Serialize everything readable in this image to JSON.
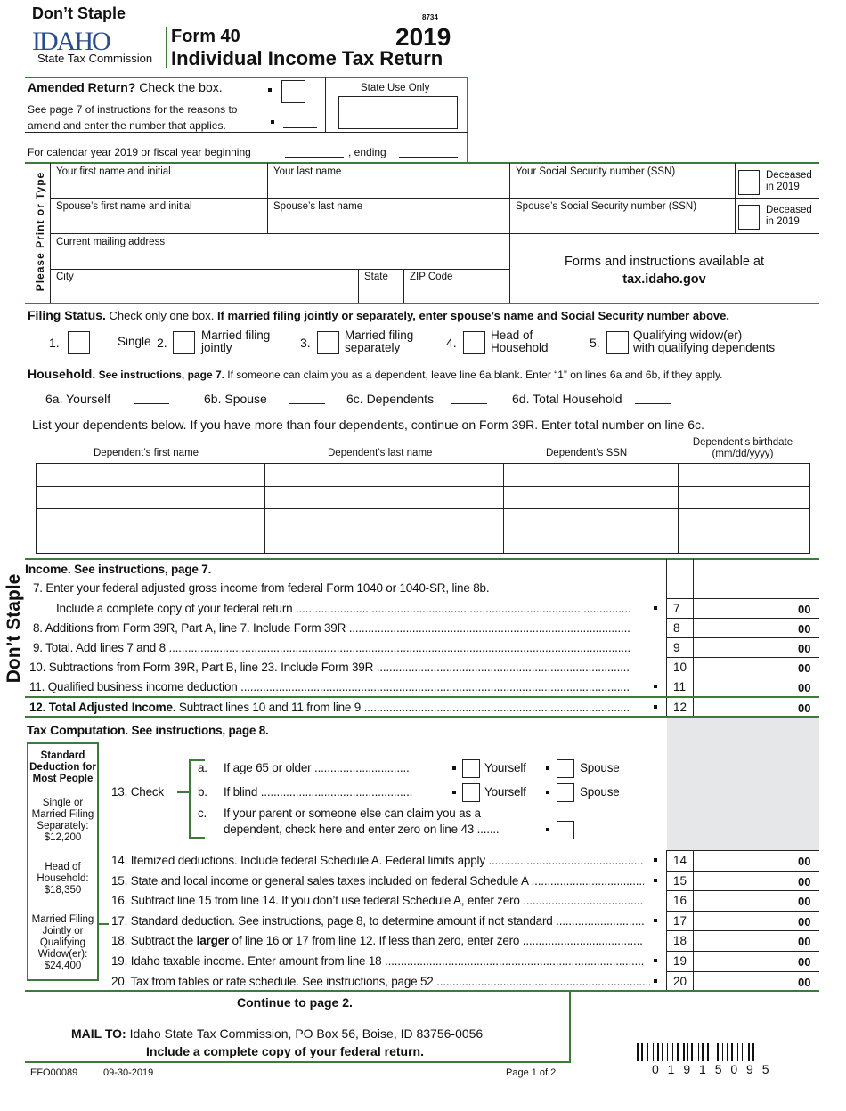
{
  "header": {
    "dont_staple": "Don’t Staple",
    "logo_text": "IDAHO",
    "agency": "State Tax Commission",
    "form_number": "Form 40",
    "form_title": "Individual Income Tax Return",
    "code": "8734",
    "year": "2019"
  },
  "amended": {
    "label_bold": "Amended Return?",
    "label": "Check the box.",
    "instr_line1": "See page 7 of instructions for the reasons to",
    "instr_line2": "amend and enter the number that applies.",
    "state_use": "State Use Only",
    "fiscal_text": "For calendar year 2019 or fiscal year beginning",
    "ending": ", ending"
  },
  "personal": {
    "side_label": "Please Print or Type",
    "first_name": "Your first name and initial",
    "last_name": "Your last name",
    "ssn": "Your Social Security number (SSN)",
    "deceased1": "Deceased",
    "deceased2": "in 2019",
    "spouse_first": "Spouse’s first name and initial",
    "spouse_last": "Spouse’s last name",
    "spouse_ssn": "Spouse’s Social Security number (SSN)",
    "address": "Current mailing address",
    "city": "City",
    "state": "State",
    "zip": "ZIP Code",
    "forms_line1": "Forms and instructions available at",
    "forms_line2": "tax.idaho.gov"
  },
  "filing": {
    "title": "Filing Status.",
    "text": "Check only one box.",
    "text_bold": "If married filing jointly or separately, enter spouse’s name and Social Security number above.",
    "options": [
      {
        "n": "1.",
        "l1": "Single",
        "l2": ""
      },
      {
        "n": "2.",
        "l1": "Married filing",
        "l2": "jointly"
      },
      {
        "n": "3.",
        "l1": "Married filing",
        "l2": "separately"
      },
      {
        "n": "4.",
        "l1": "Head of",
        "l2": "Household"
      },
      {
        "n": "5.",
        "l1": "Qualifying widow(er)",
        "l2": "with qualifying dependents"
      }
    ]
  },
  "household": {
    "title": "Household.",
    "title_rest": "See instructions, page 7.",
    "text": "If someone can claim you as a dependent, leave line 6a blank. Enter “1” on lines 6a and 6b, if they apply.",
    "fields": [
      "6a. Yourself",
      "6b. Spouse",
      "6c.  Dependents",
      "6d. Total Household"
    ],
    "list_text": "List your dependents below. If you have more than four dependents, continue on Form 39R. Enter total number on line 6c.",
    "columns": [
      "Dependent’s first name",
      "Dependent’s last name",
      "Dependent’s SSN",
      "Dependent’s birthdate",
      "(mm/dd/yyyy)"
    ]
  },
  "side_dont_staple": "Don’t Staple",
  "income": {
    "title": "Income.",
    "title_rest": "See instructions, page 7.",
    "line7a": "7.  Enter your federal adjusted gross income from federal Form 1040 or 1040-SR, line 8b.",
    "lines": [
      {
        "num": "7",
        "text": "Include a complete copy of your federal return",
        "bold": "",
        "cents": "00"
      },
      {
        "num": "8",
        "text": "8.  Additions from Form 39R, Part A, line 7. Include Form 39R",
        "bold": "",
        "cents": "00"
      },
      {
        "num": "9",
        "text": "9.  Total. Add lines 7 and 8",
        "bold": "",
        "cents": "00"
      },
      {
        "num": "10",
        "text": "10.  Subtractions from Form 39R, Part B, line 23. Include Form 39R",
        "bold": "",
        "cents": "00"
      },
      {
        "num": "11",
        "text": "11.  Qualified business income deduction",
        "bold": "",
        "cents": "00"
      },
      {
        "num": "12",
        "text": "Subtract lines 10 and 11 from line 9",
        "bold": "12.  Total Adjusted Income.",
        "cents": "00"
      }
    ]
  },
  "tax": {
    "title": "Tax Computation.",
    "title_rest": "See instructions, page 8.",
    "std_box": {
      "title": "Standard Deduction for Most People",
      "single": "Single or Married Filing Separately: $12,200",
      "hoh": "Head of Household: $18,350",
      "mfj": "Married Filing Jointly or Qualifying Widow(er): $24,400"
    },
    "check": "13.  Check",
    "a": "a.",
    "a_text": "If age 65 or older",
    "b": "b.",
    "b_text": "If blind",
    "c": "c.",
    "c_text1": "If your parent or someone else can claim you as a",
    "c_text2": "dependent, check here and enter zero on line 43",
    "yourself": "Yourself",
    "spouse": "Spouse",
    "lines": [
      {
        "num": "14",
        "pre": "14.  Itemized deductions. Include federal Schedule A. Federal limits apply",
        "bold": "",
        "post": "",
        "cents": "00",
        "mark": true
      },
      {
        "num": "15",
        "pre": "15.  State and local income or general sales taxes included on federal Schedule A",
        "bold": "",
        "post": "",
        "cents": "00",
        "mark": true
      },
      {
        "num": "16",
        "pre": "16.  Subtract line 15 from line 14. If you don’t use federal Schedule A, enter zero",
        "bold": "",
        "post": "",
        "cents": "00",
        "mark": false
      },
      {
        "num": "17",
        "pre": "17.  Standard deduction. See instructions, page 8, to determine amount if not standard",
        "bold": "",
        "post": "",
        "cents": "00",
        "mark": true
      },
      {
        "num": "18",
        "pre": "18.  Subtract the ",
        "bold": "larger",
        "post": " of line 16 or 17 from line 12. If less than zero, enter zero",
        "cents": "00",
        "mark": false
      },
      {
        "num": "19",
        "pre": "19.  Idaho taxable income. Enter amount from line 18",
        "bold": "",
        "post": "",
        "cents": "00",
        "mark": true
      },
      {
        "num": "20",
        "pre": "20.  Tax from tables or rate schedule. See instructions, page 52",
        "bold": "",
        "post": "",
        "cents": "00",
        "mark": true
      }
    ]
  },
  "footer": {
    "continue": "Continue to page 2.",
    "mail_bold": "MAIL TO:",
    "mail": "Idaho State Tax Commission, PO Box 56, Boise, ID 83756-0056",
    "include": "Include a complete copy of your federal return.",
    "form_code": "EFO00089",
    "date": "09-30-2019",
    "page": "Page 1 of 2",
    "barcode_number": "0 1 9 1 5 0 9 5"
  },
  "colors": {
    "green": "#3f7a3a",
    "logo_blue": "#2b4c8c",
    "gray_shade": "#e6e7e8"
  }
}
